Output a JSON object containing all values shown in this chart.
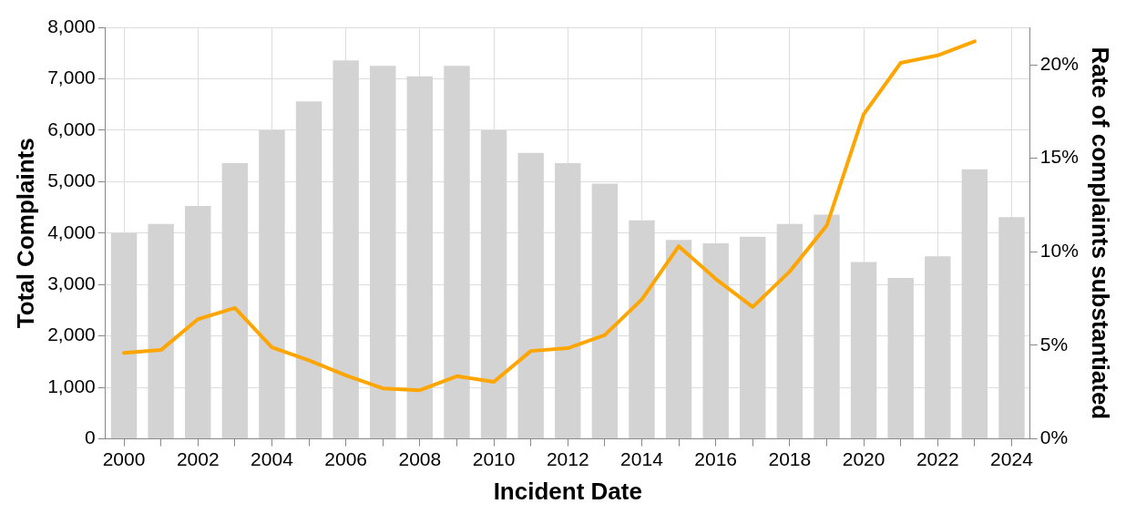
{
  "chart_data": {
    "type": "bar",
    "xlabel": "Incident Date",
    "ylabel": "Total Complaints",
    "y2label": "Rate of complaints substantiated",
    "categories": [
      "2000",
      null,
      "2002",
      null,
      "2004",
      null,
      "2006",
      null,
      "2008",
      null,
      "2010",
      null,
      "2012",
      null,
      "2014",
      null,
      "2016",
      null,
      "2018",
      null,
      "2020",
      null,
      "2022",
      null,
      "2024"
    ],
    "series": [
      {
        "color": "#d3d3d3",
        "values": [
          4000,
          4180,
          4530,
          5360,
          6000,
          6560,
          7360,
          7250,
          7050,
          7250,
          6000,
          5560,
          5360,
          4960,
          4250,
          3870,
          3800,
          3930,
          4180,
          4360,
          3440,
          3130,
          3550,
          5240,
          4310
        ]
      },
      {
        "type": "line",
        "axis": "y2",
        "color": "#ffa500",
        "values": [
          4.6,
          4.75,
          6.4,
          7.0,
          4.9,
          4.2,
          3.4,
          2.7,
          2.6,
          3.35,
          3.05,
          4.7,
          4.85,
          5.55,
          7.45,
          10.3,
          8.55,
          7.05,
          8.95,
          11.4,
          17.35,
          20.1,
          20.5,
          21.25,
          null
        ]
      }
    ],
    "ylim": [
      0,
      8000
    ],
    "yticks": [
      {
        "value": 0,
        "label": "0"
      },
      {
        "value": 1000,
        "label": "1,000"
      },
      {
        "value": 2000,
        "label": "2,000"
      },
      {
        "value": 3000,
        "label": "3,000"
      },
      {
        "value": 4000,
        "label": "4,000"
      },
      {
        "value": 5000,
        "label": "5,000"
      },
      {
        "value": 6000,
        "label": "6,000"
      },
      {
        "value": 7000,
        "label": "7,000"
      },
      {
        "value": 8000,
        "label": "8,000"
      }
    ],
    "y2lim": [
      0,
      22
    ],
    "y2ticks": [
      {
        "value": 0,
        "label": "0%"
      },
      {
        "value": 5,
        "label": "5%"
      },
      {
        "value": 10,
        "label": "10%"
      },
      {
        "value": 15,
        "label": "15%"
      },
      {
        "value": 20,
        "label": "20%"
      }
    ],
    "grid": true,
    "legend": false,
    "marker": "none"
  }
}
